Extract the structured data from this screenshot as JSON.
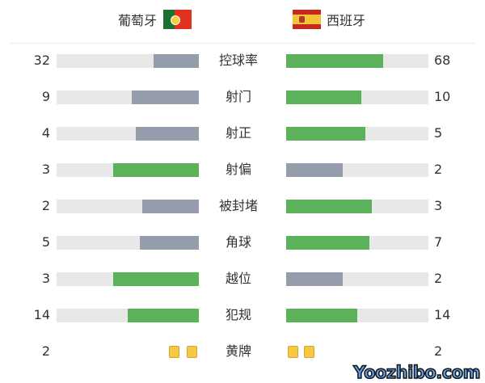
{
  "home": {
    "name": "葡萄牙",
    "flag_icon": "portugal-flag-icon"
  },
  "away": {
    "name": "西班牙",
    "flag_icon": "spain-flag-icon"
  },
  "colors": {
    "leading": "#5cb25a",
    "trailing": "#959cab",
    "track": "#e8e8e8",
    "yellow_card": "#f6c945"
  },
  "stats": [
    {
      "label": "控球率",
      "home": "32",
      "away": "68",
      "home_value": 32,
      "away_value": 68
    },
    {
      "label": "射门",
      "home": "9",
      "away": "10",
      "home_value": 9,
      "away_value": 10
    },
    {
      "label": "射正",
      "home": "4",
      "away": "5",
      "home_value": 4,
      "away_value": 5
    },
    {
      "label": "射偏",
      "home": "3",
      "away": "2",
      "home_value": 3,
      "away_value": 2
    },
    {
      "label": "被封堵",
      "home": "2",
      "away": "3",
      "home_value": 2,
      "away_value": 3
    },
    {
      "label": "角球",
      "home": "5",
      "away": "7",
      "home_value": 5,
      "away_value": 7
    },
    {
      "label": "越位",
      "home": "3",
      "away": "2",
      "home_value": 3,
      "away_value": 2
    },
    {
      "label": "犯规",
      "home": "14",
      "away": "14",
      "home_value": 14,
      "away_value": 14
    }
  ],
  "yellow_cards": {
    "label": "黄牌",
    "home": "2",
    "away": "2",
    "home_value": 2,
    "away_value": 2
  },
  "watermark": "Yoozhibo.com"
}
